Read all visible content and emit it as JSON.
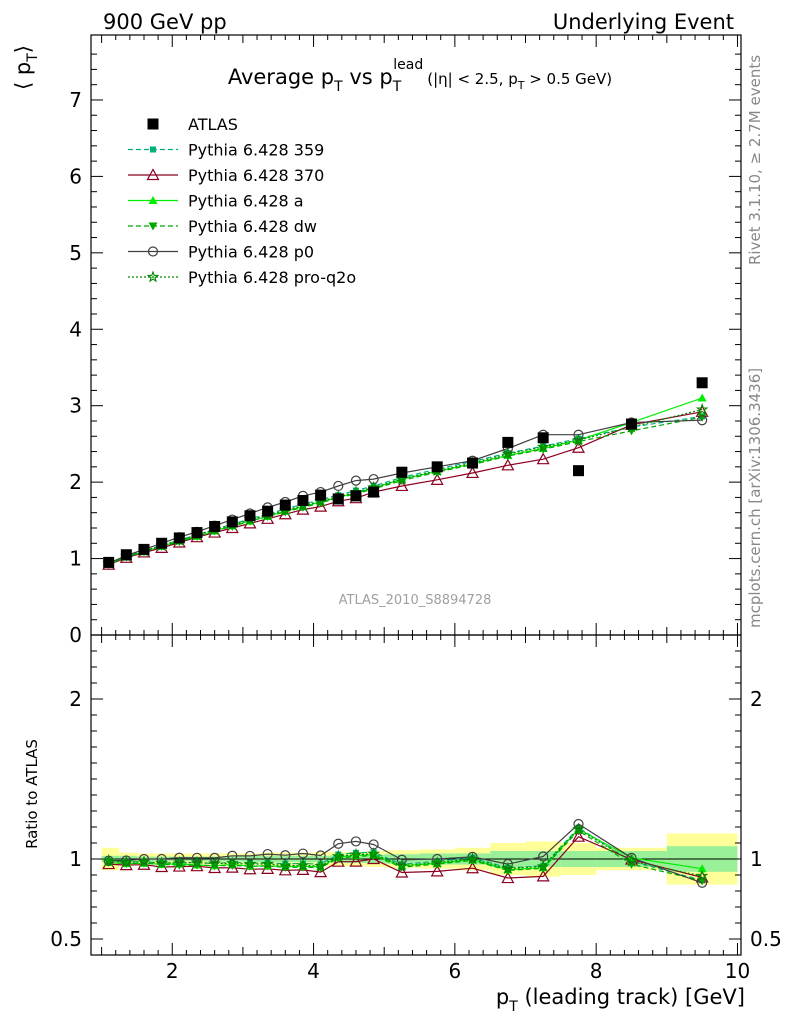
{
  "header": {
    "left": "900 GeV pp",
    "right": "Underlying Event"
  },
  "side_labels": {
    "rivet": "Rivet 3.1.10, ≥ 2.7M events",
    "mcplots": "mcplots.cern.ch [arXiv:1306.3436]"
  },
  "watermark": "ATLAS_2010_S8894728",
  "title": {
    "main": "Average p",
    "main_sub": "T",
    "vs": " vs p",
    "vs_sub": "T",
    "vs_sup": "lead",
    "cuts_a": "(|η| < 2.5, p",
    "cuts_sub": "T",
    "cuts_b": " > 0.5 GeV)"
  },
  "axes": {
    "ylabel_main": "⟨ p",
    "ylabel_main_sub": "T",
    "ylabel_main_end": "⟩",
    "ylabel_ratio": "Ratio to ATLAS",
    "xlabel": "p",
    "xlabel_sub": "T",
    "xlabel_rest": " (leading track) [GeV]"
  },
  "colors": {
    "ATLAS": "#000000",
    "p359": "#00b07a",
    "p370": "#8b0020",
    "pa": "#00ee00",
    "pdw": "#00a800",
    "pp0": "#404040",
    "pq2o": "#008800",
    "band_yellow": "#ffff99",
    "band_green": "#99f099"
  },
  "chart_data": {
    "type": "line",
    "x_range": [
      0.85,
      10.05
    ],
    "main_y_range": [
      0,
      7.85
    ],
    "ratio_y_range": [
      0.4,
      2.4
    ],
    "main_y_ticks": [
      0,
      1,
      2,
      3,
      4,
      5,
      6,
      7
    ],
    "ratio_y_ticks": [
      0.5,
      1,
      2
    ],
    "x_ticks": [
      2,
      4,
      6,
      8,
      10
    ],
    "x": [
      1.1,
      1.35,
      1.6,
      1.85,
      2.1,
      2.35,
      2.6,
      2.85,
      3.1,
      3.35,
      3.6,
      3.85,
      4.1,
      4.35,
      4.6,
      4.85,
      5.25,
      5.75,
      6.25,
      6.75,
      7.25,
      7.75,
      8.5,
      9.5
    ],
    "bin_edges": [
      1.0,
      1.25,
      1.5,
      1.75,
      2.0,
      2.25,
      2.5,
      2.75,
      3.0,
      3.25,
      3.5,
      3.75,
      4.0,
      4.25,
      4.5,
      4.75,
      5.0,
      5.5,
      6.0,
      6.5,
      7.0,
      7.5,
      8.0,
      9.0,
      10.0
    ],
    "ATLAS": [
      0.95,
      1.05,
      1.12,
      1.2,
      1.27,
      1.34,
      1.42,
      1.48,
      1.56,
      1.62,
      1.7,
      1.76,
      1.83,
      1.78,
      1.82,
      1.87,
      2.13,
      2.2,
      2.25,
      2.52,
      2.58,
      2.15,
      2.76,
      3.3
    ],
    "band_yellow": [
      0.07,
      0.04,
      0.035,
      0.035,
      0.035,
      0.035,
      0.035,
      0.035,
      0.035,
      0.04,
      0.04,
      0.04,
      0.045,
      0.045,
      0.045,
      0.05,
      0.055,
      0.06,
      0.07,
      0.1,
      0.11,
      0.1,
      0.07,
      0.16
    ],
    "band_green": [
      0.02,
      0.02,
      0.015,
      0.015,
      0.015,
      0.015,
      0.015,
      0.015,
      0.02,
      0.02,
      0.02,
      0.02,
      0.02,
      0.025,
      0.025,
      0.025,
      0.03,
      0.035,
      0.035,
      0.05,
      0.05,
      0.05,
      0.05,
      0.08
    ],
    "series": [
      {
        "key": "p359",
        "name": "Pythia 6.428 359",
        "dash": "5,3",
        "marker": "square-small",
        "values": [
          0.94,
          1.03,
          1.1,
          1.17,
          1.24,
          1.31,
          1.38,
          1.45,
          1.52,
          1.58,
          1.65,
          1.71,
          1.77,
          1.83,
          1.89,
          1.95,
          2.06,
          2.17,
          2.27,
          2.38,
          2.47,
          2.57,
          2.72,
          2.86
        ]
      },
      {
        "key": "p370",
        "name": "Pythia 6.428 370",
        "dash": "",
        "marker": "triangle-open",
        "values": [
          0.92,
          1.01,
          1.08,
          1.14,
          1.21,
          1.28,
          1.34,
          1.4,
          1.46,
          1.52,
          1.58,
          1.64,
          1.68,
          1.75,
          1.79,
          1.87,
          1.95,
          2.03,
          2.12,
          2.22,
          2.3,
          2.45,
          2.75,
          2.92
        ]
      },
      {
        "key": "pa",
        "name": "Pythia 6.428 a",
        "dash": "",
        "marker": "triangle",
        "values": [
          0.93,
          1.02,
          1.09,
          1.16,
          1.23,
          1.29,
          1.36,
          1.43,
          1.49,
          1.55,
          1.62,
          1.68,
          1.74,
          1.8,
          1.86,
          1.92,
          2.04,
          2.14,
          2.24,
          2.35,
          2.44,
          2.55,
          2.78,
          3.1
        ]
      },
      {
        "key": "pdw",
        "name": "Pythia 6.428 dw",
        "dash": "5,3",
        "marker": "triangle-down",
        "values": [
          0.93,
          1.02,
          1.09,
          1.16,
          1.22,
          1.29,
          1.36,
          1.42,
          1.49,
          1.55,
          1.61,
          1.67,
          1.73,
          1.79,
          1.85,
          1.91,
          2.02,
          2.13,
          2.23,
          2.34,
          2.43,
          2.53,
          2.67,
          2.85
        ]
      },
      {
        "key": "pp0",
        "name": "Pythia 6.428 p0",
        "dash": "",
        "marker": "circle-open",
        "values": [
          0.94,
          1.04,
          1.12,
          1.2,
          1.28,
          1.35,
          1.43,
          1.51,
          1.59,
          1.67,
          1.74,
          1.82,
          1.87,
          1.95,
          2.02,
          2.04,
          2.12,
          2.2,
          2.28,
          2.44,
          2.62,
          2.62,
          2.78,
          2.81
        ]
      },
      {
        "key": "pq2o",
        "name": "Pythia 6.428 pro-q2o",
        "dash": "2,2",
        "marker": "star",
        "values": [
          0.94,
          1.03,
          1.1,
          1.17,
          1.24,
          1.31,
          1.38,
          1.44,
          1.51,
          1.57,
          1.63,
          1.69,
          1.75,
          1.81,
          1.87,
          1.93,
          2.04,
          2.15,
          2.25,
          2.37,
          2.46,
          2.55,
          2.72,
          2.95
        ]
      }
    ],
    "legend": [
      {
        "key": "ATLAS",
        "name": "ATLAS",
        "marker": "square"
      },
      {
        "key": "p359",
        "name": "Pythia 6.428 359"
      },
      {
        "key": "p370",
        "name": "Pythia 6.428 370"
      },
      {
        "key": "pa",
        "name": "Pythia 6.428 a"
      },
      {
        "key": "pdw",
        "name": "Pythia 6.428 dw"
      },
      {
        "key": "pp0",
        "name": "Pythia 6.428 p0"
      },
      {
        "key": "pq2o",
        "name": "Pythia 6.428 pro-q2o"
      }
    ]
  }
}
